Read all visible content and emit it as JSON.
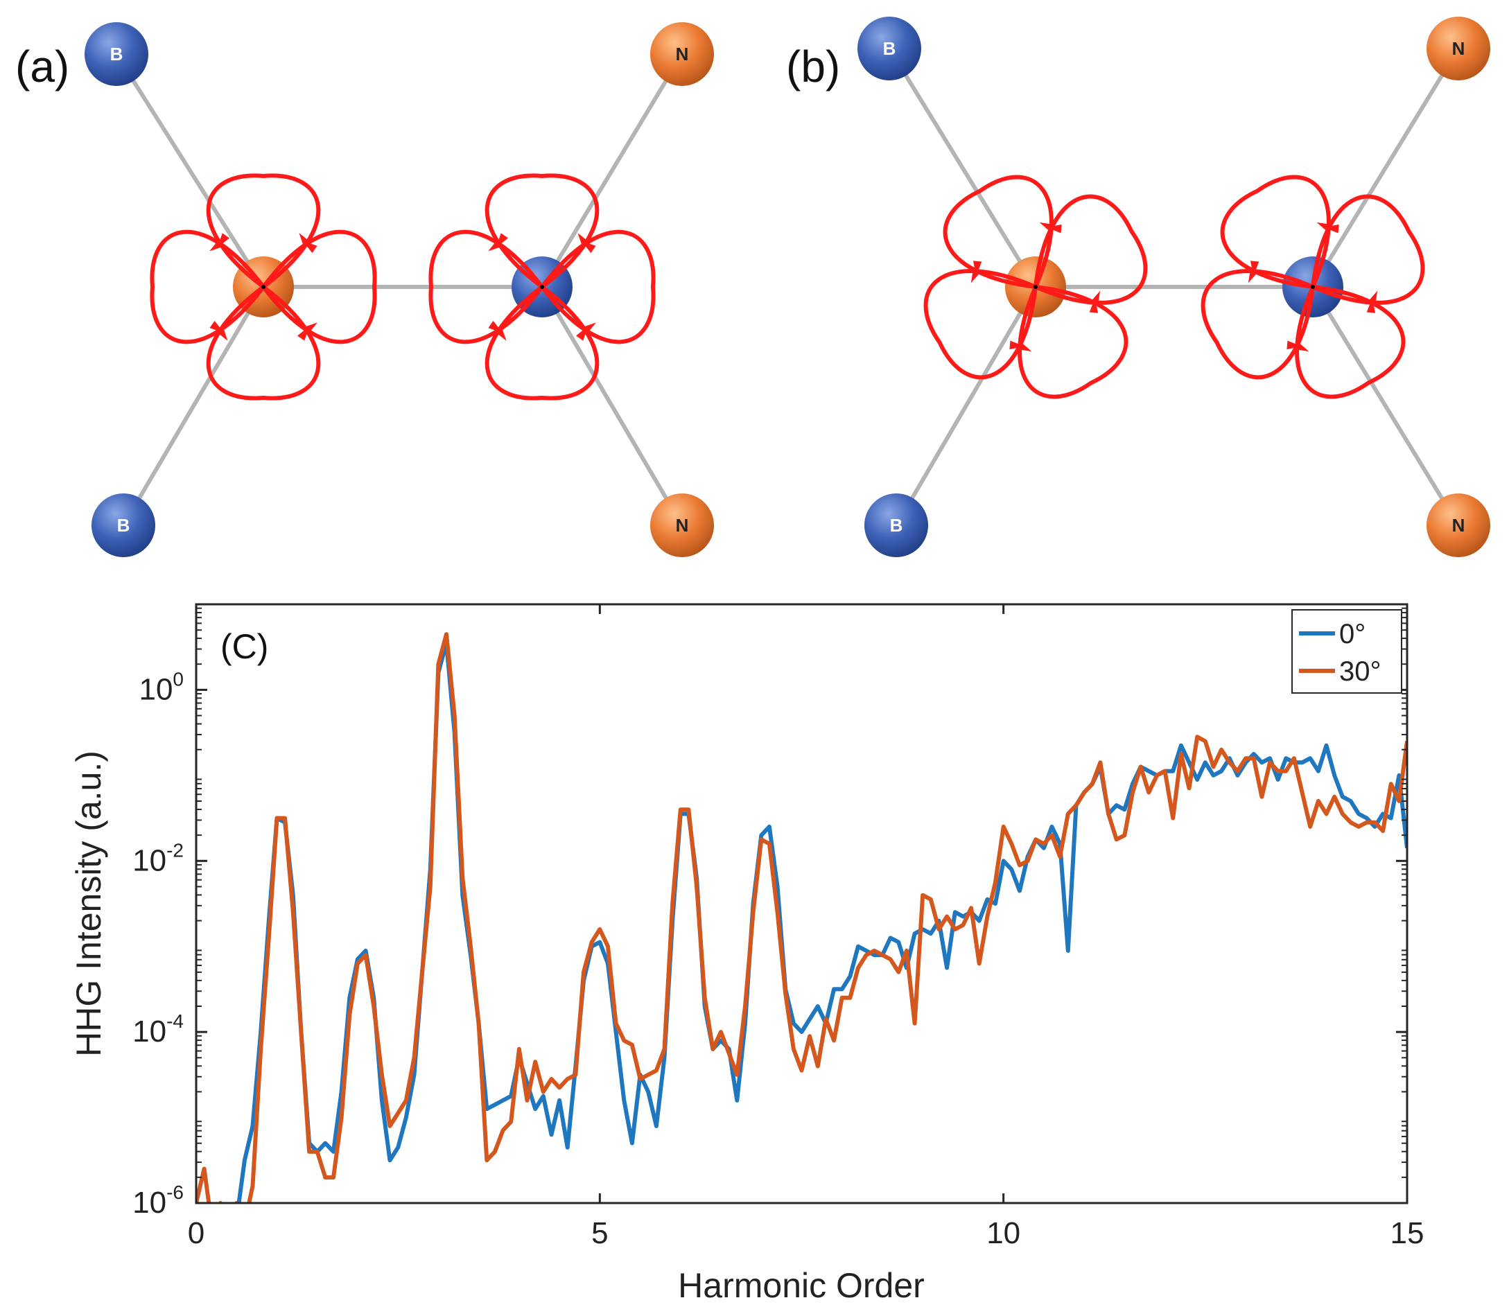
{
  "panels": {
    "a": {
      "label": "(a)",
      "orientation_deg": 0
    },
    "b": {
      "label": "(b)",
      "orientation_deg": 30
    }
  },
  "atoms": {
    "boron": "B",
    "nitrogen": "N"
  },
  "colors": {
    "boron": "#3a5fb0",
    "nitrogen": "#e07a35",
    "bond": "#b4b4b4",
    "orbit": "#ff1a1a",
    "series_0": "#1f77c0",
    "series_30": "#d4571d"
  },
  "chart_data": {
    "type": "line",
    "panel_label": "(C)",
    "xlabel": "Harmonic Order",
    "ylabel": "HHG Intensity (a.u.)",
    "yscale": "log",
    "xlim": [
      0,
      15
    ],
    "ylim_exp": [
      -6,
      1
    ],
    "xticks": [
      0,
      5,
      10,
      15
    ],
    "xtick_labels": [
      "0",
      "5",
      "10",
      "15"
    ],
    "yticks_exp": [
      -6,
      -4,
      -2,
      0
    ],
    "ytick_base": "10",
    "ytick_exps": [
      "-6",
      "-4",
      "-2",
      "0"
    ],
    "legend_position": "top-right",
    "series": [
      {
        "name": "0°",
        "color": "#1f77c0",
        "points": [
          [
            0,
            -6
          ],
          [
            0.1,
            -6.3
          ],
          [
            0.2,
            -6.05
          ],
          [
            0.3,
            -6.1
          ],
          [
            0.4,
            -6.2
          ],
          [
            0.5,
            -6.2
          ],
          [
            0.6,
            -5.5
          ],
          [
            0.7,
            -5.1
          ],
          [
            0.8,
            -4
          ],
          [
            0.9,
            -2.7
          ],
          [
            1.0,
            -1.5
          ],
          [
            1.1,
            -1.55
          ],
          [
            1.2,
            -2.4
          ],
          [
            1.3,
            -4
          ],
          [
            1.4,
            -5.3
          ],
          [
            1.5,
            -5.4
          ],
          [
            1.6,
            -5.3
          ],
          [
            1.7,
            -5.4
          ],
          [
            1.8,
            -4.7
          ],
          [
            1.9,
            -3.6
          ],
          [
            2.0,
            -3.15
          ],
          [
            2.1,
            -3.05
          ],
          [
            2.2,
            -3.6
          ],
          [
            2.3,
            -4.8
          ],
          [
            2.4,
            -5.5
          ],
          [
            2.5,
            -5.35
          ],
          [
            2.6,
            -5.0
          ],
          [
            2.7,
            -4.5
          ],
          [
            2.8,
            -3.3
          ],
          [
            2.9,
            -2.1
          ],
          [
            3.0,
            0.2
          ],
          [
            3.1,
            0.55
          ],
          [
            3.2,
            -0.5
          ],
          [
            3.3,
            -2.4
          ],
          [
            3.4,
            -3.1
          ],
          [
            3.5,
            -3.9
          ],
          [
            3.6,
            -4.9
          ],
          [
            3.7,
            -4.85
          ],
          [
            3.8,
            -4.8
          ],
          [
            3.9,
            -4.75
          ],
          [
            4.0,
            -4.3
          ],
          [
            4.1,
            -4.6
          ],
          [
            4.2,
            -4.9
          ],
          [
            4.3,
            -4.75
          ],
          [
            4.4,
            -5.2
          ],
          [
            4.5,
            -4.8
          ],
          [
            4.6,
            -5.35
          ],
          [
            4.7,
            -4.4
          ],
          [
            4.8,
            -3.4
          ],
          [
            4.9,
            -3.0
          ],
          [
            5.0,
            -2.95
          ],
          [
            5.1,
            -3.2
          ],
          [
            5.2,
            -4.0
          ],
          [
            5.3,
            -4.8
          ],
          [
            5.4,
            -5.3
          ],
          [
            5.5,
            -4.5
          ],
          [
            5.6,
            -4.7
          ],
          [
            5.7,
            -5.1
          ],
          [
            5.8,
            -4.3
          ],
          [
            5.9,
            -2.7
          ],
          [
            6.0,
            -1.45
          ],
          [
            6.1,
            -1.45
          ],
          [
            6.2,
            -2.2
          ],
          [
            6.3,
            -3.7
          ],
          [
            6.4,
            -4.2
          ],
          [
            6.5,
            -4.1
          ],
          [
            6.6,
            -4.2
          ],
          [
            6.7,
            -4.8
          ],
          [
            6.8,
            -3.9
          ],
          [
            6.9,
            -2.5
          ],
          [
            7.0,
            -1.7
          ],
          [
            7.1,
            -1.6
          ],
          [
            7.2,
            -2.3
          ],
          [
            7.3,
            -3.5
          ],
          [
            7.4,
            -3.9
          ],
          [
            7.5,
            -4.0
          ],
          [
            7.6,
            -3.85
          ],
          [
            7.7,
            -3.7
          ],
          [
            7.8,
            -3.9
          ],
          [
            7.9,
            -3.5
          ],
          [
            8.0,
            -3.5
          ],
          [
            8.1,
            -3.35
          ],
          [
            8.2,
            -3.0
          ],
          [
            8.3,
            -3.05
          ],
          [
            8.4,
            -3.1
          ],
          [
            8.5,
            -3.1
          ],
          [
            8.6,
            -2.9
          ],
          [
            8.7,
            -2.95
          ],
          [
            8.8,
            -3.25
          ],
          [
            8.9,
            -2.85
          ],
          [
            9.0,
            -2.8
          ],
          [
            9.1,
            -2.85
          ],
          [
            9.2,
            -2.7
          ],
          [
            9.3,
            -3.25
          ],
          [
            9.4,
            -2.6
          ],
          [
            9.5,
            -2.65
          ],
          [
            9.6,
            -2.6
          ],
          [
            9.7,
            -2.7
          ],
          [
            9.8,
            -2.45
          ],
          [
            9.9,
            -2.5
          ],
          [
            10.0,
            -2.0
          ],
          [
            10.1,
            -2.1
          ],
          [
            10.2,
            -2.35
          ],
          [
            10.3,
            -1.95
          ],
          [
            10.4,
            -1.75
          ],
          [
            10.5,
            -1.85
          ],
          [
            10.6,
            -1.6
          ],
          [
            10.7,
            -1.8
          ],
          [
            10.8,
            -3.05
          ],
          [
            10.9,
            -1.35
          ],
          [
            11.0,
            -1.2
          ],
          [
            11.1,
            -1.1
          ],
          [
            11.2,
            -0.9
          ],
          [
            11.3,
            -1.45
          ],
          [
            11.4,
            -1.35
          ],
          [
            11.5,
            -1.4
          ],
          [
            11.6,
            -1.1
          ],
          [
            11.7,
            -0.9
          ],
          [
            11.8,
            -0.95
          ],
          [
            11.9,
            -1.0
          ],
          [
            12.0,
            -0.95
          ],
          [
            12.1,
            -0.95
          ],
          [
            12.2,
            -0.65
          ],
          [
            12.3,
            -0.85
          ],
          [
            12.4,
            -1.05
          ],
          [
            12.5,
            -0.85
          ],
          [
            12.6,
            -1.0
          ],
          [
            12.7,
            -0.95
          ],
          [
            12.8,
            -0.8
          ],
          [
            12.9,
            -1.0
          ],
          [
            13.0,
            -0.85
          ],
          [
            13.1,
            -0.75
          ],
          [
            13.2,
            -0.85
          ],
          [
            13.3,
            -0.8
          ],
          [
            13.4,
            -1.05
          ],
          [
            13.5,
            -0.8
          ],
          [
            13.6,
            -0.85
          ],
          [
            13.7,
            -0.85
          ],
          [
            13.8,
            -0.8
          ],
          [
            13.9,
            -0.95
          ],
          [
            14.0,
            -0.65
          ],
          [
            14.1,
            -1.0
          ],
          [
            14.2,
            -1.25
          ],
          [
            14.3,
            -1.3
          ],
          [
            14.4,
            -1.45
          ],
          [
            14.5,
            -1.5
          ],
          [
            14.6,
            -1.6
          ],
          [
            14.7,
            -1.45
          ],
          [
            14.8,
            -1.5
          ],
          [
            14.9,
            -1.0
          ],
          [
            15.0,
            -1.85
          ]
        ]
      },
      {
        "name": "30°",
        "color": "#d4571d",
        "points": [
          [
            0,
            -6
          ],
          [
            0.1,
            -5.6
          ],
          [
            0.2,
            -6.3
          ],
          [
            0.3,
            -6.0
          ],
          [
            0.4,
            -6.15
          ],
          [
            0.5,
            -6.0
          ],
          [
            0.6,
            -6.25
          ],
          [
            0.7,
            -5.8
          ],
          [
            0.8,
            -4.2
          ],
          [
            0.9,
            -2.9
          ],
          [
            1.0,
            -1.5
          ],
          [
            1.1,
            -1.5
          ],
          [
            1.2,
            -2.6
          ],
          [
            1.3,
            -4.0
          ],
          [
            1.4,
            -5.4
          ],
          [
            1.5,
            -5.4
          ],
          [
            1.6,
            -5.7
          ],
          [
            1.7,
            -5.7
          ],
          [
            1.8,
            -5.0
          ],
          [
            1.9,
            -3.8
          ],
          [
            2.0,
            -3.2
          ],
          [
            2.1,
            -3.1
          ],
          [
            2.2,
            -3.7
          ],
          [
            2.3,
            -4.5
          ],
          [
            2.4,
            -5.1
          ],
          [
            2.5,
            -4.95
          ],
          [
            2.6,
            -4.8
          ],
          [
            2.7,
            -4.3
          ],
          [
            2.8,
            -3.3
          ],
          [
            2.9,
            -2.3
          ],
          [
            3.0,
            0.3
          ],
          [
            3.1,
            0.65
          ],
          [
            3.2,
            -0.3
          ],
          [
            3.3,
            -2.2
          ],
          [
            3.4,
            -3.0
          ],
          [
            3.5,
            -3.9
          ],
          [
            3.6,
            -5.5
          ],
          [
            3.7,
            -5.4
          ],
          [
            3.8,
            -5.15
          ],
          [
            3.9,
            -5.05
          ],
          [
            4.0,
            -4.2
          ],
          [
            4.1,
            -4.8
          ],
          [
            4.2,
            -4.35
          ],
          [
            4.3,
            -4.7
          ],
          [
            4.4,
            -4.55
          ],
          [
            4.5,
            -4.65
          ],
          [
            4.6,
            -4.55
          ],
          [
            4.7,
            -4.5
          ],
          [
            4.8,
            -3.3
          ],
          [
            4.9,
            -2.95
          ],
          [
            5.0,
            -2.8
          ],
          [
            5.1,
            -3.0
          ],
          [
            5.2,
            -3.9
          ],
          [
            5.3,
            -4.1
          ],
          [
            5.4,
            -4.15
          ],
          [
            5.5,
            -4.55
          ],
          [
            5.6,
            -4.5
          ],
          [
            5.7,
            -4.45
          ],
          [
            5.8,
            -4.2
          ],
          [
            5.9,
            -2.5
          ],
          [
            6.0,
            -1.4
          ],
          [
            6.1,
            -1.4
          ],
          [
            6.2,
            -2.3
          ],
          [
            6.3,
            -3.6
          ],
          [
            6.4,
            -4.2
          ],
          [
            6.5,
            -4.0
          ],
          [
            6.6,
            -4.25
          ],
          [
            6.7,
            -4.5
          ],
          [
            6.8,
            -3.7
          ],
          [
            6.9,
            -2.6
          ],
          [
            7.0,
            -1.75
          ],
          [
            7.1,
            -1.8
          ],
          [
            7.2,
            -2.6
          ],
          [
            7.3,
            -3.55
          ],
          [
            7.4,
            -4.2
          ],
          [
            7.5,
            -4.45
          ],
          [
            7.6,
            -4.05
          ],
          [
            7.7,
            -4.4
          ],
          [
            7.8,
            -3.85
          ],
          [
            7.9,
            -4.1
          ],
          [
            8.0,
            -3.6
          ],
          [
            8.1,
            -3.6
          ],
          [
            8.2,
            -3.25
          ],
          [
            8.3,
            -3.1
          ],
          [
            8.4,
            -3.05
          ],
          [
            8.5,
            -3.1
          ],
          [
            8.6,
            -3.15
          ],
          [
            8.7,
            -3.3
          ],
          [
            8.8,
            -3.05
          ],
          [
            8.9,
            -3.9
          ],
          [
            9.0,
            -2.4
          ],
          [
            9.1,
            -2.45
          ],
          [
            9.2,
            -2.8
          ],
          [
            9.3,
            -2.65
          ],
          [
            9.4,
            -2.8
          ],
          [
            9.5,
            -2.75
          ],
          [
            9.6,
            -2.55
          ],
          [
            9.7,
            -3.2
          ],
          [
            9.8,
            -2.65
          ],
          [
            9.9,
            -2.25
          ],
          [
            10.0,
            -1.6
          ],
          [
            10.1,
            -1.8
          ],
          [
            10.2,
            -2.05
          ],
          [
            10.3,
            -2.0
          ],
          [
            10.4,
            -1.75
          ],
          [
            10.5,
            -1.8
          ],
          [
            10.6,
            -1.7
          ],
          [
            10.7,
            -1.95
          ],
          [
            10.8,
            -1.45
          ],
          [
            10.9,
            -1.35
          ],
          [
            11.0,
            -1.2
          ],
          [
            11.1,
            -1.1
          ],
          [
            11.2,
            -0.85
          ],
          [
            11.3,
            -1.45
          ],
          [
            11.4,
            -1.75
          ],
          [
            11.5,
            -1.7
          ],
          [
            11.6,
            -1.2
          ],
          [
            11.7,
            -0.9
          ],
          [
            11.8,
            -1.2
          ],
          [
            11.9,
            -1.0
          ],
          [
            12.0,
            -0.95
          ],
          [
            12.1,
            -1.5
          ],
          [
            12.2,
            -0.75
          ],
          [
            12.3,
            -1.15
          ],
          [
            12.4,
            -0.55
          ],
          [
            12.5,
            -0.6
          ],
          [
            12.6,
            -0.9
          ],
          [
            12.7,
            -0.7
          ],
          [
            12.8,
            -0.85
          ],
          [
            12.9,
            -0.95
          ],
          [
            13.0,
            -0.8
          ],
          [
            13.1,
            -0.8
          ],
          [
            13.2,
            -1.25
          ],
          [
            13.3,
            -0.85
          ],
          [
            13.4,
            -0.95
          ],
          [
            13.5,
            -0.95
          ],
          [
            13.6,
            -0.8
          ],
          [
            13.7,
            -1.2
          ],
          [
            13.8,
            -1.6
          ],
          [
            13.9,
            -1.3
          ],
          [
            14.0,
            -1.45
          ],
          [
            14.1,
            -1.25
          ],
          [
            14.2,
            -1.45
          ],
          [
            14.3,
            -1.55
          ],
          [
            14.4,
            -1.6
          ],
          [
            14.5,
            -1.55
          ],
          [
            14.6,
            -1.55
          ],
          [
            14.7,
            -1.65
          ],
          [
            14.8,
            -1.1
          ],
          [
            14.9,
            -1.3
          ],
          [
            15.0,
            -0.6
          ]
        ]
      }
    ]
  }
}
